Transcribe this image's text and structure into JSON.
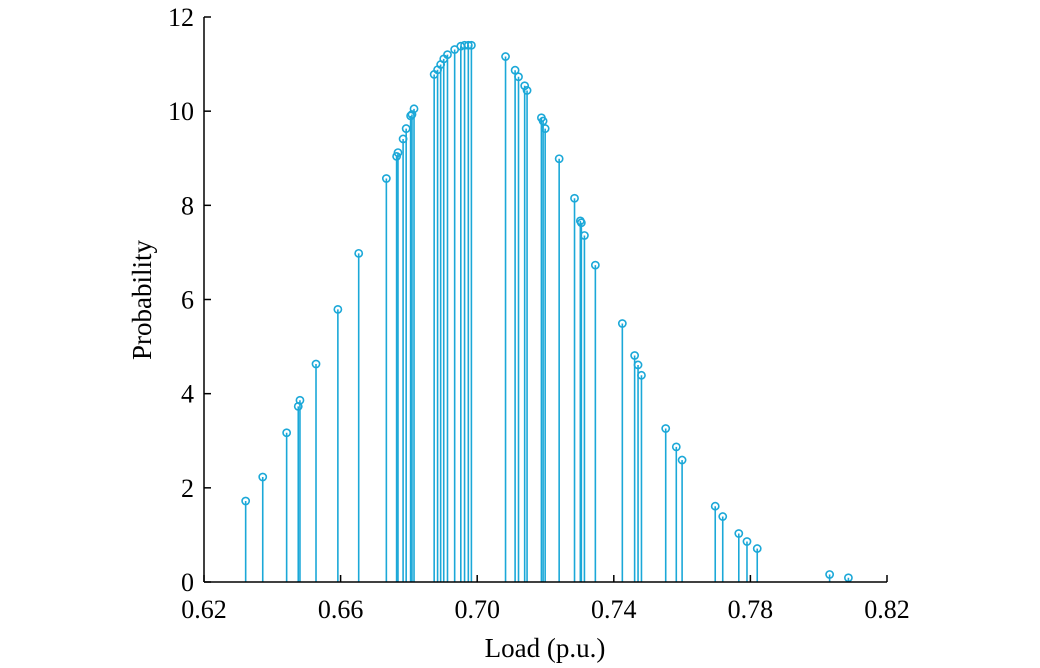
{
  "chart_data": {
    "type": "stem",
    "title": "",
    "xlabel": "Load (p.u.)",
    "ylabel": "Probability",
    "xlim": [
      0.62,
      0.82
    ],
    "ylim": [
      0,
      12
    ],
    "xticks": [
      "0.62",
      "0.66",
      "0.70",
      "0.74",
      "0.78",
      "0.82"
    ],
    "yticks": [
      "0",
      "2",
      "4",
      "6",
      "8",
      "10",
      "12"
    ],
    "grid": false,
    "color": "#1ba8d8",
    "series": [
      {
        "x": [
          0.6322,
          0.6372,
          0.6442,
          0.6476,
          0.6481,
          0.6528,
          0.6592,
          0.6653,
          0.6734,
          0.6764,
          0.6768,
          0.6783,
          0.6792,
          0.6805,
          0.6809,
          0.6815,
          0.6874,
          0.6884,
          0.6893,
          0.6902,
          0.6913,
          0.6934,
          0.6952,
          0.6963,
          0.6974,
          0.6983,
          0.7083,
          0.7111,
          0.7121,
          0.7139,
          0.7146,
          0.7188,
          0.7193,
          0.7199,
          0.724,
          0.7285,
          0.7302,
          0.7305,
          0.7314,
          0.7346,
          0.7425,
          0.7461,
          0.7471,
          0.7481,
          0.7552,
          0.7583,
          0.76,
          0.7697,
          0.7719,
          0.7766,
          0.779,
          0.782,
          0.8032,
          0.8087
        ],
        "y": [
          1.72,
          2.23,
          3.17,
          3.73,
          3.86,
          4.63,
          5.79,
          6.98,
          8.57,
          9.04,
          9.12,
          9.41,
          9.63,
          9.9,
          9.93,
          10.05,
          10.78,
          10.88,
          10.99,
          11.11,
          11.2,
          11.31,
          11.38,
          11.4,
          11.4,
          11.4,
          11.16,
          10.87,
          10.73,
          10.54,
          10.44,
          9.86,
          9.79,
          9.63,
          8.99,
          8.15,
          7.67,
          7.63,
          7.36,
          6.73,
          5.49,
          4.81,
          4.61,
          4.39,
          3.26,
          2.87,
          2.59,
          1.61,
          1.39,
          1.03,
          0.86,
          0.71,
          0.16,
          0.09
        ]
      }
    ]
  }
}
